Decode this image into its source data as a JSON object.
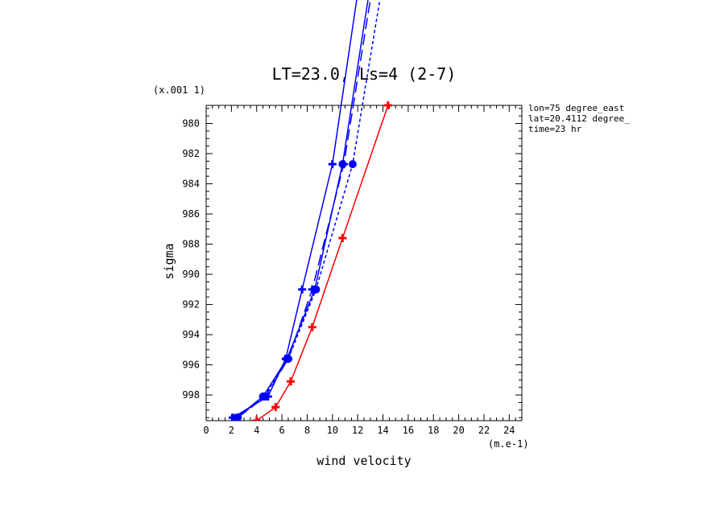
{
  "chart_data": {
    "type": "line",
    "title": "LT=23.0, Ls=4 (2-7)",
    "xlabel": "wind velocity",
    "ylabel": "sigma",
    "xunits": "(m.e-1)",
    "yunits": "(x.001 1)",
    "xlim": [
      0,
      25
    ],
    "ylim": [
      999.7,
      978.8
    ],
    "xticks": [
      0,
      2,
      4,
      6,
      8,
      10,
      12,
      14,
      16,
      18,
      20,
      22,
      24
    ],
    "yticks": [
      980,
      982,
      984,
      986,
      988,
      990,
      992,
      994,
      996,
      998
    ],
    "annotations": [
      "lon=75 degree_east",
      "lat=20.4112 degree_",
      "time=23 hr"
    ],
    "series": [
      {
        "style": "solid",
        "color": "#0000ff",
        "marker": "plus",
        "x": [
          2.1,
          4.9,
          6.3,
          7.6,
          10.0,
          14.0
        ],
        "y": [
          999.5,
          998.1,
          995.6,
          991.0,
          982.7,
          960.0
        ]
      },
      {
        "style": "solid",
        "color": "#0000ff",
        "marker": "dot",
        "x": [
          2.4,
          4.5,
          6.4,
          8.6,
          10.8,
          15.0
        ],
        "y": [
          999.5,
          998.1,
          995.6,
          991.0,
          982.7,
          960.0
        ]
      },
      {
        "style": "dashed",
        "color": "#0000ff",
        "marker": "plus",
        "x": [
          2.5,
          4.7,
          6.5,
          8.4,
          10.9,
          14.7
        ],
        "y": [
          999.5,
          998.1,
          995.6,
          991.0,
          982.7,
          963.0
        ]
      },
      {
        "style": "dotted",
        "color": "#0000ff",
        "marker": "dot",
        "x": [
          2.5,
          4.6,
          6.5,
          8.7,
          11.6,
          14.9
        ],
        "y": [
          999.5,
          998.1,
          995.6,
          991.0,
          982.7,
          966.0
        ]
      },
      {
        "style": "solid",
        "color": "#ff0000",
        "marker": "plus",
        "x": [
          4.0,
          5.5,
          6.7,
          8.4,
          10.8,
          14.4
        ],
        "y": [
          999.7,
          998.8,
          997.1,
          993.5,
          987.6,
          978.8
        ]
      }
    ]
  }
}
